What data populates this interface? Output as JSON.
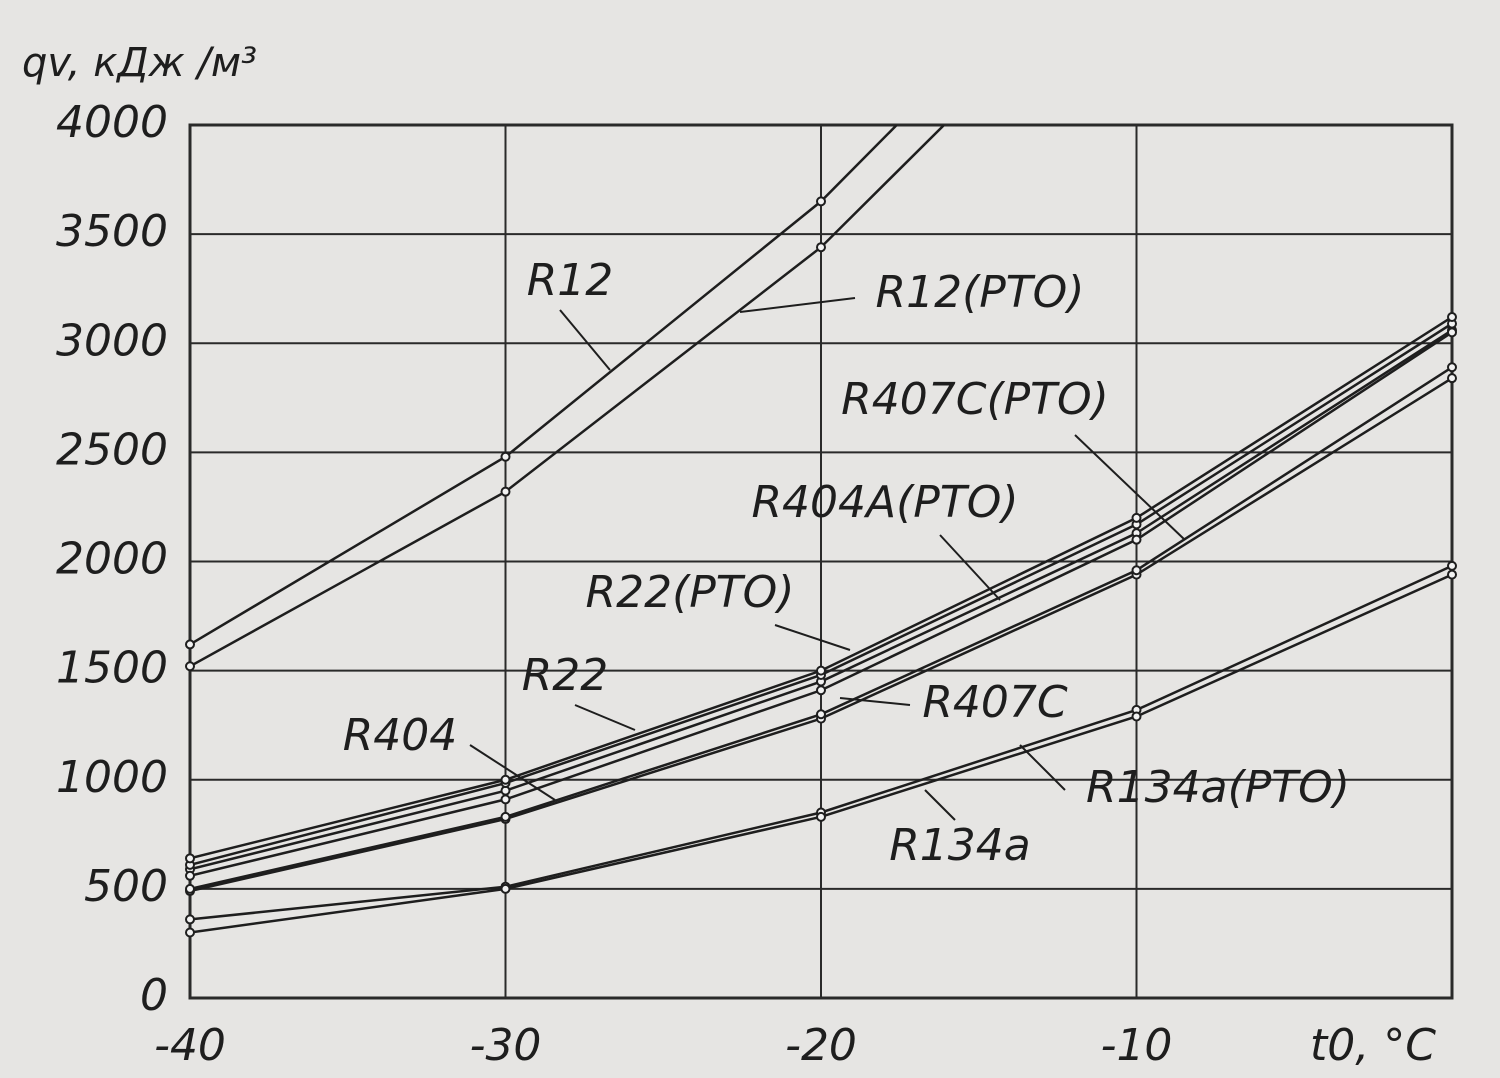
{
  "chart_data": {
    "type": "line",
    "y_label": "qv, кДж /м³",
    "x_label": "t0, °C",
    "xlim": [
      -40,
      0
    ],
    "xticks": [
      -40,
      -30,
      -20,
      -10
    ],
    "ylim": [
      0,
      4000
    ],
    "yticks": [
      0,
      500,
      1000,
      1500,
      2000,
      2500,
      3000,
      3500,
      4000
    ],
    "grid": true,
    "series": [
      {
        "name": "R12",
        "color": "#1e1e1e",
        "x": [
          -40,
          -30,
          -20,
          -17.6
        ],
        "values": [
          1620,
          2480,
          3650,
          4000
        ]
      },
      {
        "name": "R12(PTO)",
        "color": "#1e1e1e",
        "x": [
          -40,
          -30,
          -20,
          -16.1
        ],
        "values": [
          1520,
          2320,
          3440,
          4000
        ]
      },
      {
        "name": "R407C(PTO)",
        "color": "#1e1e1e",
        "x": [
          -40,
          -30,
          -20,
          -10,
          0
        ],
        "values": [
          490,
          820,
          1280,
          1940,
          2840
        ]
      },
      {
        "name": "R404A(PTO)",
        "color": "#1e1e1e",
        "x": [
          -40,
          -30,
          -20,
          -10,
          0
        ],
        "values": [
          590,
          950,
          1450,
          2130,
          3060
        ]
      },
      {
        "name": "R22(PTO)",
        "color": "#1e1e1e",
        "x": [
          -40,
          -30,
          -20,
          -10,
          0
        ],
        "values": [
          610,
          985,
          1480,
          2170,
          3090
        ]
      },
      {
        "name": "R22",
        "color": "#1e1e1e",
        "x": [
          -40,
          -30,
          -20,
          -10,
          0
        ],
        "values": [
          640,
          1000,
          1500,
          2200,
          3120
        ]
      },
      {
        "name": "R404",
        "color": "#1e1e1e",
        "x": [
          -40,
          -30,
          -20,
          -10,
          0
        ],
        "values": [
          560,
          910,
          1410,
          2100,
          3050
        ]
      },
      {
        "name": "R407C",
        "color": "#1e1e1e",
        "x": [
          -40,
          -30,
          -20,
          -10,
          0
        ],
        "values": [
          500,
          830,
          1300,
          1960,
          2890
        ]
      },
      {
        "name": "R134a(PTO)",
        "color": "#1e1e1e",
        "x": [
          -40,
          -30,
          -20,
          -10,
          0
        ],
        "values": [
          360,
          510,
          850,
          1320,
          1980
        ]
      },
      {
        "name": "R134a",
        "color": "#1e1e1e",
        "x": [
          -40,
          -30,
          -20,
          -10,
          0
        ],
        "values": [
          300,
          500,
          830,
          1290,
          1940
        ]
      }
    ]
  }
}
